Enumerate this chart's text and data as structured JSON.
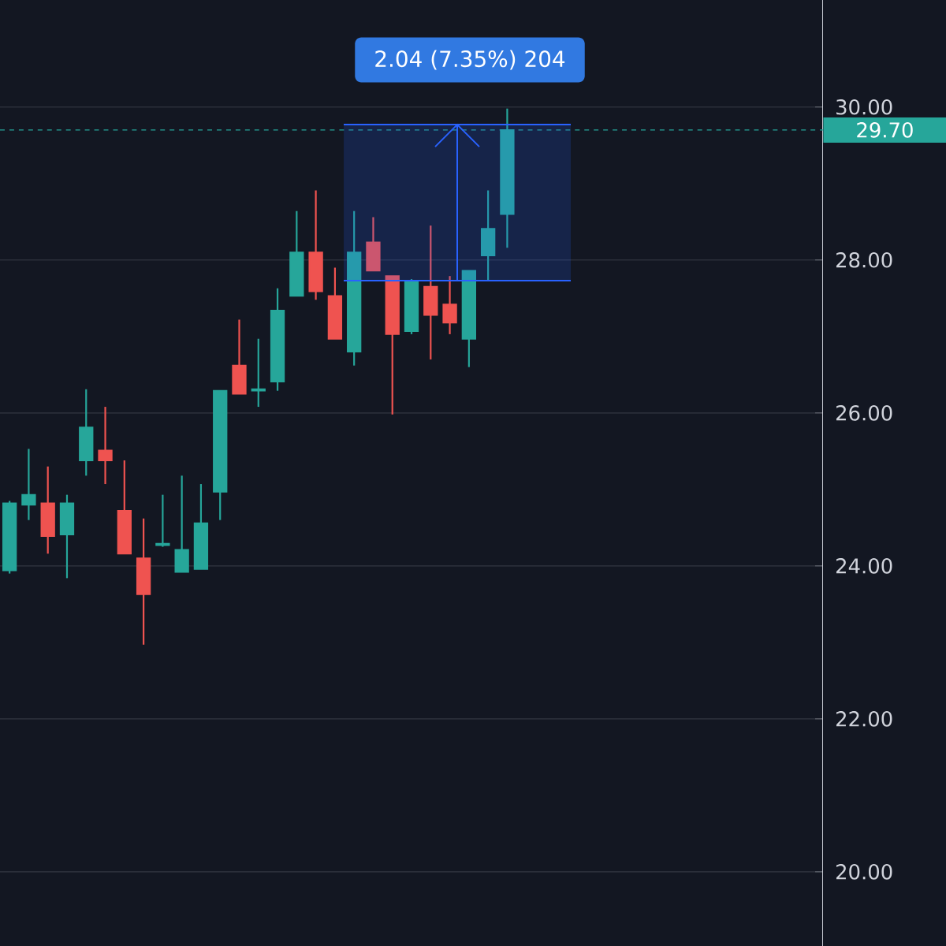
{
  "chart_data": {
    "type": "candlestick",
    "categories": [
      null,
      null,
      null,
      null,
      null,
      null,
      null,
      null,
      null,
      null,
      null,
      null,
      null,
      null,
      null,
      null,
      null,
      null,
      null,
      null,
      null,
      null,
      null,
      null,
      null,
      null,
      null,
      null,
      null,
      null,
      null,
      null,
      null,
      null,
      null,
      null,
      null,
      null,
      null,
      null,
      null,
      null,
      null
    ],
    "ohlc": [
      [
        23.94,
        24.85,
        23.9,
        24.82
      ],
      [
        24.8,
        25.53,
        24.6,
        24.93
      ],
      [
        24.82,
        25.3,
        24.16,
        24.39
      ],
      [
        24.41,
        24.93,
        23.84,
        24.82
      ],
      [
        25.38,
        26.31,
        25.18,
        25.81
      ],
      [
        25.51,
        26.08,
        25.07,
        25.38
      ],
      [
        24.72,
        25.38,
        24.16,
        24.16
      ],
      [
        24.1,
        24.62,
        22.97,
        23.63
      ],
      [
        24.27,
        24.93,
        24.25,
        24.29
      ],
      [
        23.92,
        25.18,
        23.92,
        24.21
      ],
      [
        23.96,
        25.07,
        23.96,
        24.56
      ],
      [
        24.97,
        26.29,
        24.6,
        26.29
      ],
      [
        26.62,
        27.22,
        26.25,
        26.25
      ],
      [
        26.29,
        26.97,
        26.08,
        26.31
      ],
      [
        26.41,
        27.63,
        26.29,
        27.34
      ],
      [
        27.53,
        28.64,
        27.53,
        28.1
      ],
      [
        28.1,
        28.91,
        27.48,
        27.59
      ],
      [
        27.53,
        27.9,
        26.97,
        26.97
      ],
      [
        26.8,
        28.64,
        26.62,
        28.1
      ],
      [
        28.23,
        28.56,
        27.86,
        27.86
      ],
      [
        27.79,
        27.79,
        25.98,
        27.03
      ],
      [
        27.07,
        27.75,
        27.03,
        27.73
      ],
      [
        27.65,
        28.45,
        26.7,
        27.28
      ],
      [
        27.42,
        27.79,
        27.03,
        27.18
      ],
      [
        26.97,
        27.86,
        26.6,
        27.86
      ],
      [
        28.06,
        28.91,
        27.73,
        28.41
      ],
      [
        28.6,
        29.98,
        28.16,
        29.7
      ],
      null,
      null,
      null,
      null,
      null,
      null,
      null,
      null,
      null,
      null,
      null,
      null,
      null,
      null,
      null,
      null
    ],
    "colors": [
      "#26a69a",
      "#26a69a",
      "#ef5350",
      "#26a69a",
      "#26a69a",
      "#ef5350",
      "#ef5350",
      "#ef5350",
      "#26a69a",
      "#26a69a",
      "#26a69a",
      "#26a69a",
      "#ef5350",
      "#26a69a",
      "#26a69a",
      "#26a69a",
      "#ef5350",
      "#ef5350",
      "#26a69a",
      "#ef5350",
      "#ef5350",
      "#26a69a",
      "#ef5350",
      "#ef5350",
      "#26a69a",
      "#26a69a",
      "#26a69a",
      null,
      null,
      null,
      null,
      null,
      null,
      null,
      null,
      null,
      null,
      null,
      null,
      null,
      null,
      null,
      null
    ],
    "ylim": [
      19.03,
      31.4
    ],
    "yticks": [
      {
        "value": 20,
        "label": "20.00"
      },
      {
        "value": 22,
        "label": "22.00"
      },
      {
        "value": 24,
        "label": "24.00"
      },
      {
        "value": 26,
        "label": "26.00"
      },
      {
        "value": 28,
        "label": "28.00"
      },
      {
        "value": 30,
        "label": "30.00"
      }
    ],
    "grid": "y",
    "tick_labels": "y",
    "ref_lines": [
      {
        "axis": "y",
        "value": 29.7,
        "label": "29.70",
        "color": "#26a69a"
      }
    ],
    "bands": [
      {
        "axis": "y",
        "from": 27.73,
        "to": 29.77,
        "color": "#2962ff"
      }
    ],
    "annotations": [
      "2.04 (7.35%) 204"
    ]
  }
}
